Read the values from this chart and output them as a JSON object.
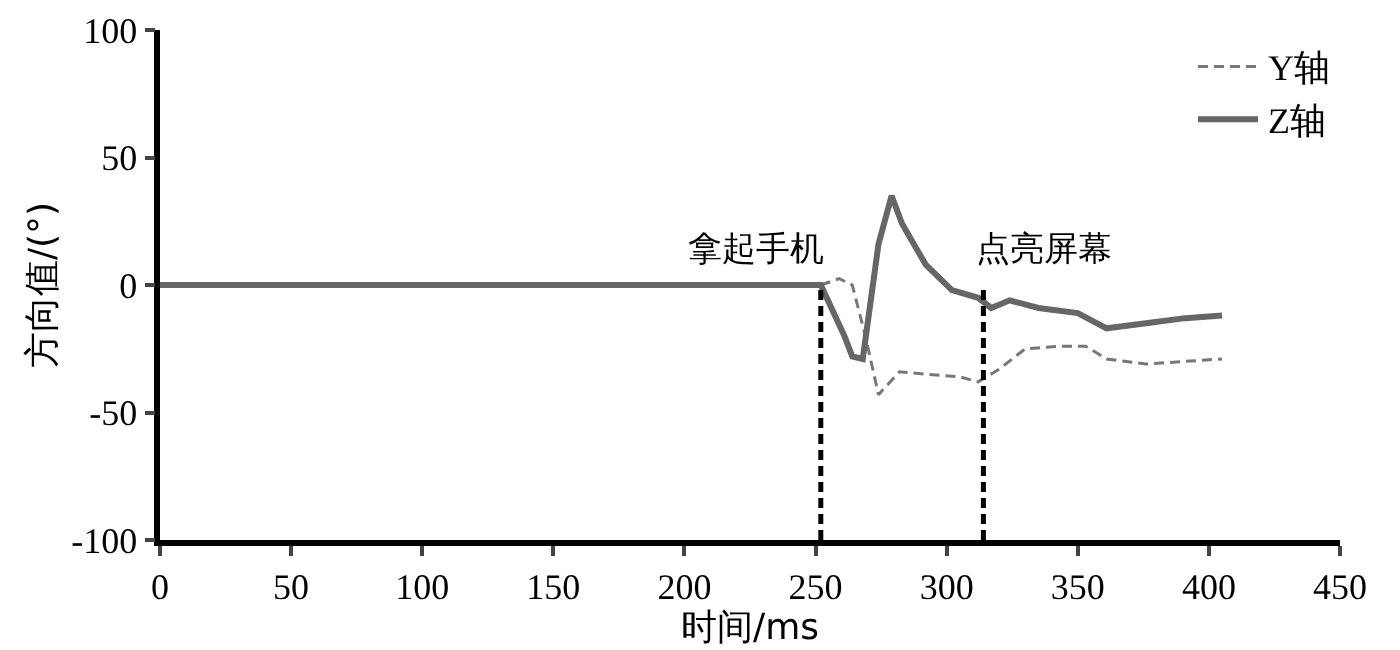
{
  "chart_data": {
    "type": "line",
    "xlabel": "时间/ms",
    "ylabel": "方向值/(°)",
    "xlim": [
      0,
      450
    ],
    "xticks": [
      0,
      50,
      100,
      150,
      200,
      250,
      300,
      350,
      400,
      450
    ],
    "ylim": [
      -100,
      100
    ],
    "yticks": [
      -100,
      -50,
      0,
      50,
      100
    ],
    "grid": false,
    "legend": "top right",
    "series": [
      {
        "name": "Y轴",
        "color": "#777777",
        "line_style": "dashed",
        "x": [
          252,
          259,
          264,
          269,
          274,
          282,
          292,
          305,
          312,
          320,
          330,
          343,
          353,
          361,
          376,
          405
        ],
        "values": [
          0,
          2.5,
          0,
          -20,
          -43,
          -34,
          -35,
          -36,
          -38,
          -33,
          -25,
          -24,
          -24,
          -29,
          -31,
          -29
        ]
      },
      {
        "name": "Z轴",
        "color": "#666666",
        "line_style": "solid",
        "x": [
          0,
          252,
          261,
          264,
          268,
          274,
          279,
          283,
          292,
          302,
          312,
          317,
          324,
          335,
          350,
          361,
          376,
          391,
          405
        ],
        "values": [
          0,
          0,
          -20,
          -28,
          -29,
          16,
          35,
          24,
          8,
          -2,
          -5,
          -9,
          -6,
          -9,
          -11,
          -17,
          -15,
          -13,
          -12
        ]
      }
    ],
    "ref_lines": [
      {
        "axis": "x",
        "value": 252,
        "label": "拿起手机",
        "color": "#000000",
        "line_style": "dashed"
      },
      {
        "axis": "x",
        "value": 314,
        "label": "点亮屏幕",
        "color": "#000000",
        "line_style": "dashed"
      }
    ]
  }
}
